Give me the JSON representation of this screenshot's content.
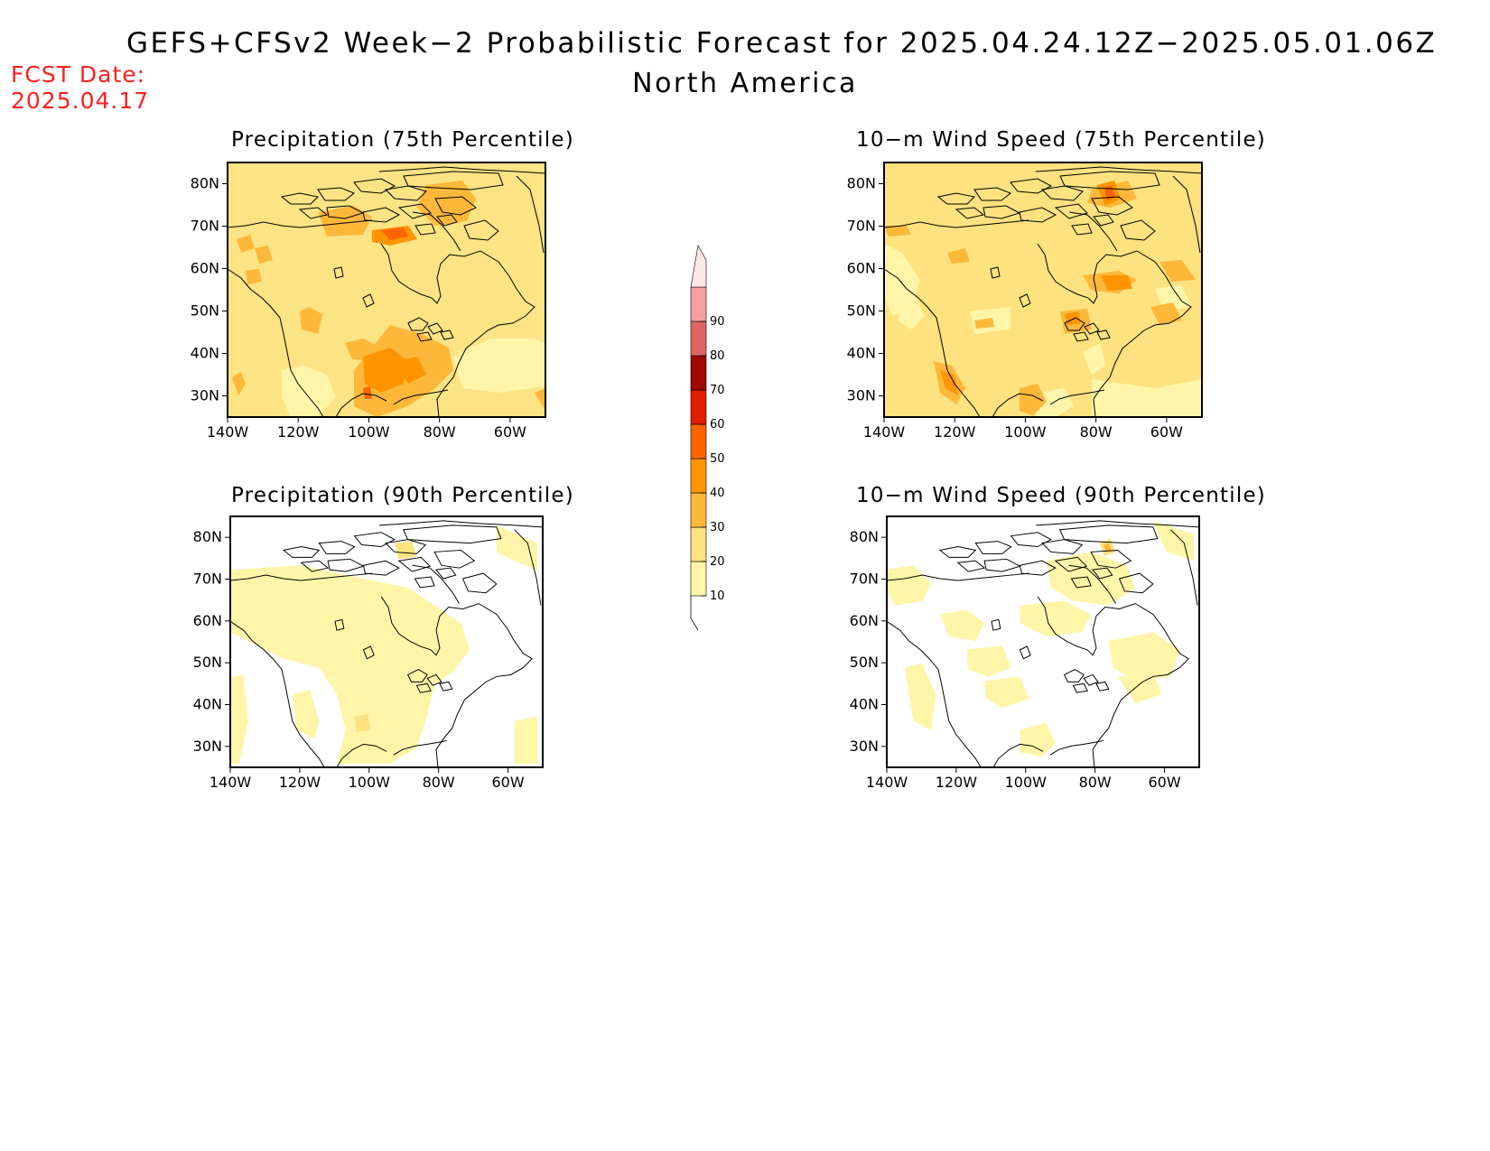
{
  "header": {
    "title": "GEFS+CFSv2 Week−2 Probabilistic Forecast for 2025.04.24.12Z−2025.05.01.06Z",
    "region": "North America",
    "fcst_label": "FCST Date:",
    "fcst_date": "2025.04.17"
  },
  "panels": [
    {
      "title": "Precipitation (75th Percentile)",
      "variable": "precipitation",
      "percentile": 75,
      "background": "#fce384"
    },
    {
      "title": "10−m Wind Speed (75th Percentile)",
      "variable": "wind_speed_10m",
      "percentile": 75,
      "background": "#fde27f"
    },
    {
      "title": "Precipitation (90th Percentile)",
      "variable": "precipitation",
      "percentile": 90,
      "background": "#ffffff"
    },
    {
      "title": "10−m Wind Speed (90th Percentile)",
      "variable": "wind_speed_10m",
      "percentile": 90,
      "background": "#ffffff"
    }
  ],
  "axes": {
    "lat_labels": [
      "30N",
      "40N",
      "50N",
      "60N",
      "70N",
      "80N"
    ],
    "lat_values": [
      30,
      40,
      50,
      60,
      70,
      80
    ],
    "lon_labels": [
      "140W",
      "120W",
      "100W",
      "80W",
      "60W"
    ],
    "lon_values": [
      -140,
      -120,
      -100,
      -80,
      -60
    ],
    "lat_range": [
      25,
      85
    ],
    "lon_range": [
      -140,
      -50
    ]
  },
  "colorbar": {
    "levels": [
      "10",
      "20",
      "30",
      "40",
      "50",
      "60",
      "70",
      "80",
      "90"
    ],
    "colors": [
      "#fff5a8",
      "#fde27f",
      "#fdb83a",
      "#fd9400",
      "#fc6400",
      "#e01e00",
      "#a00800",
      "#e06464",
      "#f4a0a0",
      "#fde6e6"
    ]
  },
  "map_colors": {
    "c20": "#fde27f",
    "c30": "#fdb83a",
    "c40": "#fd9400",
    "c50": "#fc6400",
    "light": "#fff5a8",
    "coast": "#000000"
  }
}
